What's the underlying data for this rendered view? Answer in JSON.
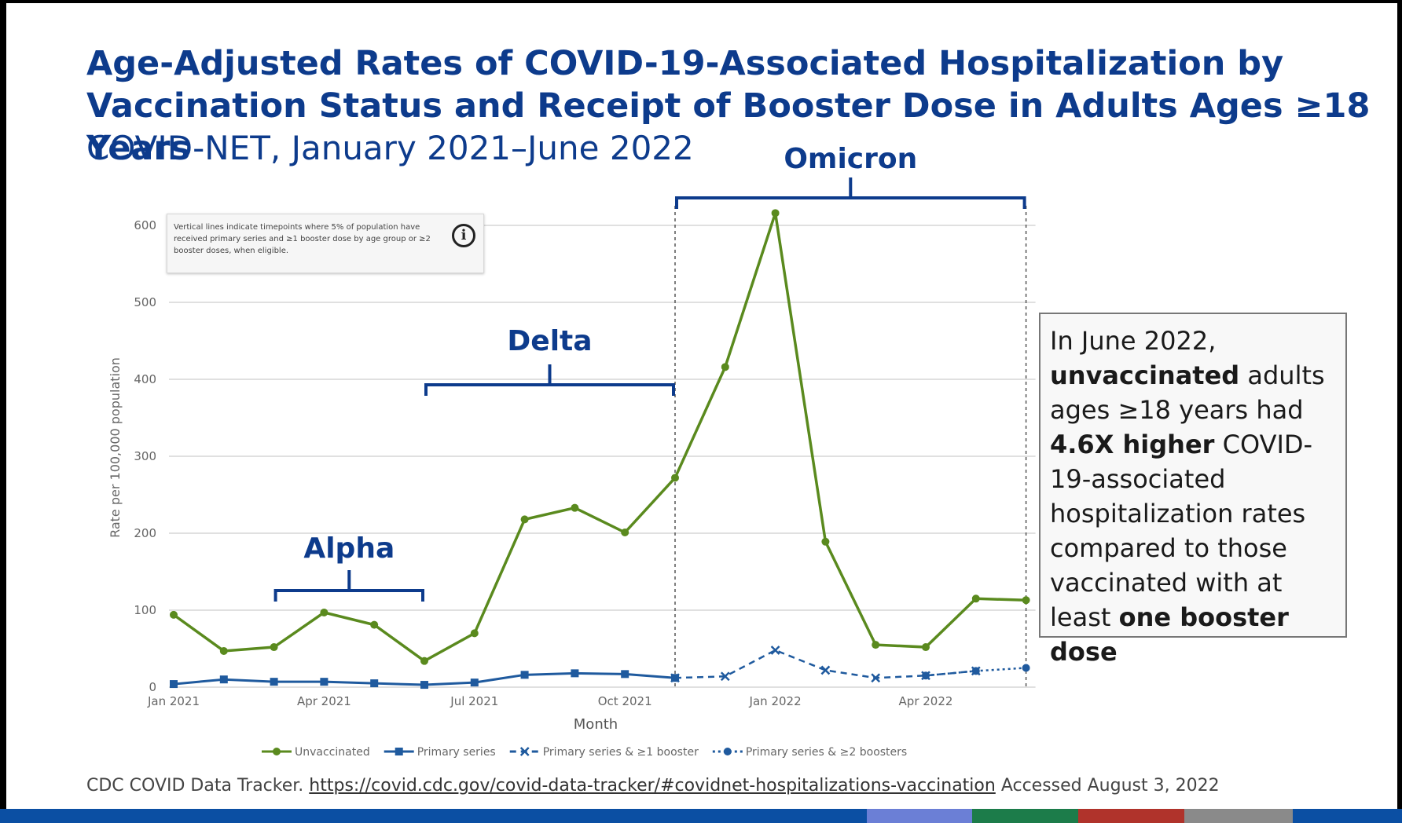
{
  "title": "Age-Adjusted Rates of COVID-19-Associated Hospitalization by Vaccination Status and Receipt of Booster Dose in Adults Ages ≥18 Years",
  "subtitle": "COVID-NET, January 2021–June 2022",
  "note": {
    "text": "Vertical lines indicate timepoints where 5% of population have received primary series and ≥1 booster dose by age group or ≥2 booster doses, when eligible.",
    "icon": "info-icon"
  },
  "callout": {
    "line1": "In June 2022,",
    "bold1": "unvaccinated",
    "text1": " adults ages ≥18 years had ",
    "bold2": "4.6X higher",
    "text2": " COVID-19-associated hospitalization rates compared to those vaccinated with at least ",
    "bold3": "one booster dose"
  },
  "source": {
    "prefix": "CDC COVID Data Tracker. ",
    "url": "https://covid.cdc.gov/covid-data-tracker/#covidnet-hospitalizations-vaccination",
    "suffix": " Accessed August 3, 2022"
  },
  "colors": {
    "title": "#0d3b8c",
    "unvaccinated": "#5a8a1e",
    "vaccinated": "#1f5a9e",
    "bracket": "#0d3b8c",
    "bottom_bar": [
      "#0b4fa3",
      "#6b7fd6",
      "#1c7c4a",
      "#b0332b",
      "#8a8a8a",
      "#0b4fa3"
    ]
  },
  "chart_data": {
    "type": "line",
    "xlabel": "Month",
    "ylabel": "Rate per 100,000 population",
    "ylim": [
      0,
      600
    ],
    "yticks": [
      0,
      100,
      200,
      300,
      400,
      500,
      600
    ],
    "xtick_labels": [
      "Jan 2021",
      "Apr 2021",
      "Jul 2021",
      "Oct 2021",
      "Jan 2022",
      "Apr 2022"
    ],
    "x": [
      "Jan 2021",
      "Feb 2021",
      "Mar 2021",
      "Apr 2021",
      "May 2021",
      "Jun 2021",
      "Jul 2021",
      "Aug 2021",
      "Sep 2021",
      "Oct 2021",
      "Nov 2021",
      "Dec 2021",
      "Jan 2022",
      "Feb 2022",
      "Mar 2022",
      "Apr 2022",
      "May 2022",
      "Jun 2022"
    ],
    "grid": true,
    "legend_position": "bottom",
    "series": [
      {
        "name": "Unvaccinated",
        "style": "solid",
        "marker": "circle",
        "values": [
          94,
          47,
          52,
          97,
          81,
          34,
          70,
          218,
          233,
          201,
          272,
          416,
          616,
          189,
          55,
          52,
          115,
          113
        ]
      },
      {
        "name": "Primary series",
        "style": "solid",
        "marker": "square",
        "values": [
          4,
          10,
          7,
          7,
          5,
          3,
          6,
          16,
          18,
          17,
          12,
          null,
          null,
          null,
          null,
          null,
          null,
          null
        ]
      },
      {
        "name": "Primary series & ≥1 booster",
        "style": "dashed",
        "marker": "x",
        "values": [
          null,
          null,
          null,
          null,
          null,
          null,
          null,
          null,
          null,
          null,
          12,
          14,
          48,
          22,
          12,
          15,
          21,
          null
        ]
      },
      {
        "name": "Primary series & ≥2 boosters",
        "style": "dotted",
        "marker": "circle",
        "values": [
          null,
          null,
          null,
          null,
          null,
          null,
          null,
          null,
          null,
          null,
          null,
          null,
          null,
          null,
          null,
          15,
          21,
          25
        ]
      }
    ],
    "vertical_lines": [
      "Nov 2021",
      "Jun 2022"
    ],
    "annotations": [
      {
        "label": "Alpha",
        "from": "Mar 2021",
        "to": "Jun 2021"
      },
      {
        "label": "Delta",
        "from": "Jun 2021",
        "to": "Nov 2021"
      },
      {
        "label": "Omicron",
        "from": "Nov 2021",
        "to": "Jun 2022"
      }
    ]
  }
}
